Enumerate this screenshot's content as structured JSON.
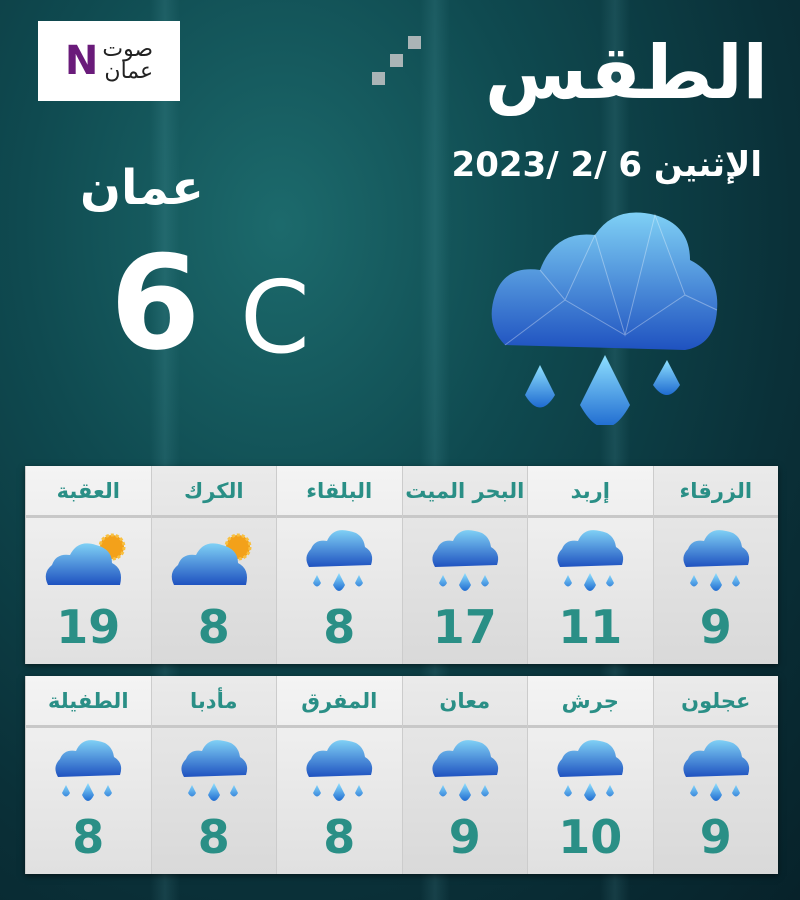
{
  "logo": {
    "text_top": "صوت",
    "text_bottom": "عمان",
    "letter": "N"
  },
  "header": {
    "title": "الطقس",
    "date": "الإثنين 6 /2 /2023"
  },
  "main": {
    "city": "عمان",
    "temperature": "6",
    "unit": "C",
    "icon": "cloud-rain-icon"
  },
  "colors": {
    "accent": "#2a8f86",
    "background": "#0f4a50"
  },
  "rows": [
    [
      {
        "name": "الزرقاء",
        "temp": "9",
        "icon": "rain"
      },
      {
        "name": "إربد",
        "temp": "11",
        "icon": "rain"
      },
      {
        "name": "البحر الميت",
        "temp": "17",
        "icon": "rain"
      },
      {
        "name": "البلقاء",
        "temp": "8",
        "icon": "rain"
      },
      {
        "name": "الكرك",
        "temp": "8",
        "icon": "partly-sunny"
      },
      {
        "name": "العقبة",
        "temp": "19",
        "icon": "partly-sunny"
      }
    ],
    [
      {
        "name": "عجلون",
        "temp": "9",
        "icon": "rain"
      },
      {
        "name": "جرش",
        "temp": "10",
        "icon": "rain"
      },
      {
        "name": "معان",
        "temp": "9",
        "icon": "rain"
      },
      {
        "name": "المفرق",
        "temp": "8",
        "icon": "rain"
      },
      {
        "name": "مأدبا",
        "temp": "8",
        "icon": "rain"
      },
      {
        "name": "الطفيلة",
        "temp": "8",
        "icon": "rain"
      }
    ]
  ]
}
